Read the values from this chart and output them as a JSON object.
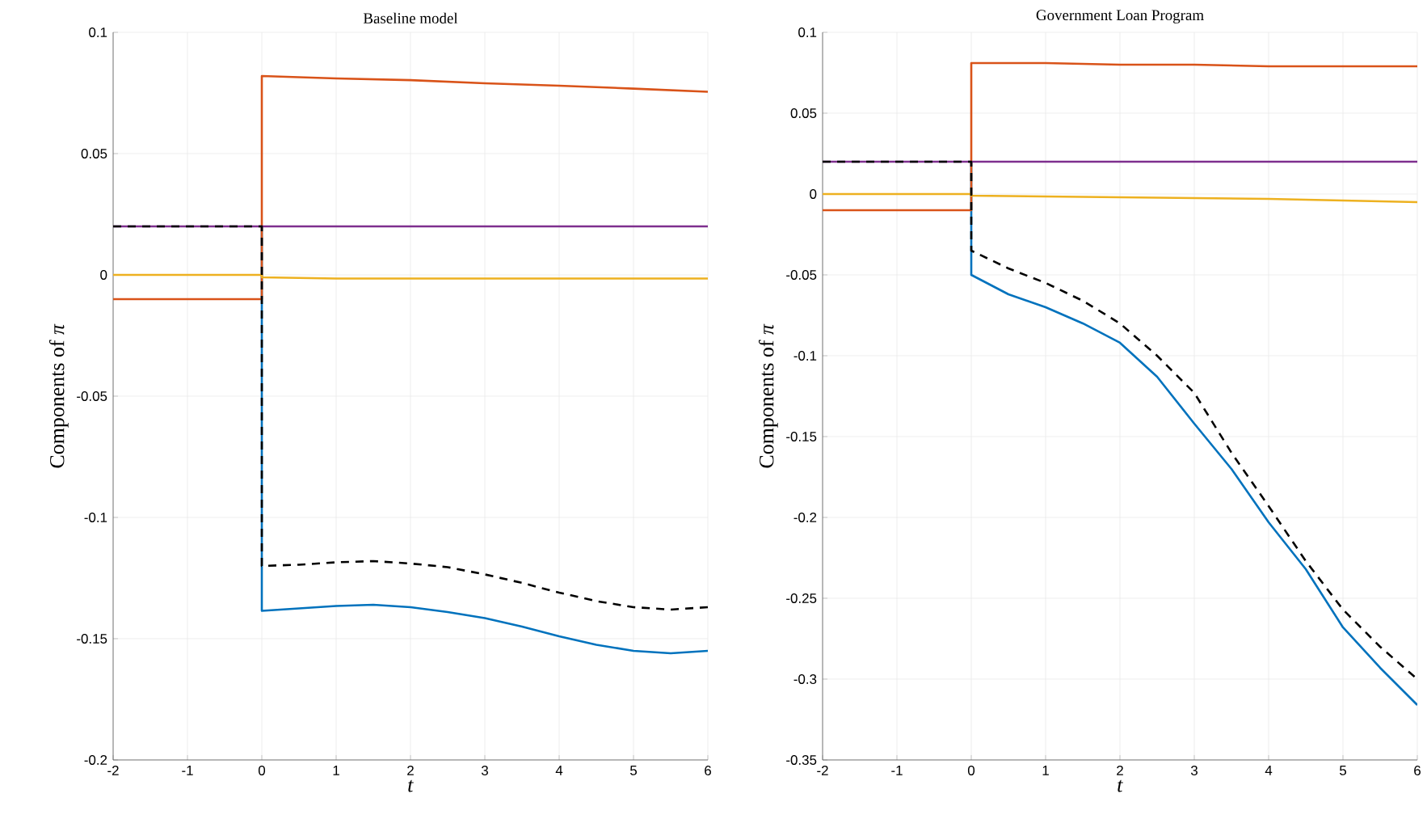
{
  "chart_data": [
    {
      "type": "line",
      "title": "Baseline model",
      "xlabel": "*t*",
      "ylabel": "Components of *π*",
      "xlim": [
        -2,
        6
      ],
      "ylim": [
        -0.2,
        0.1
      ],
      "xticks": [
        -2,
        -1,
        0,
        1,
        2,
        3,
        4,
        5,
        6
      ],
      "yticks": [
        -0.2,
        -0.15,
        -0.1,
        -0.05,
        0,
        0.05,
        0.1
      ],
      "grid": true,
      "series": [
        {
          "color": "#0072bd",
          "x": [
            0,
            0,
            0.5,
            1,
            1.5,
            2,
            2.5,
            3,
            3.5,
            4,
            4.5,
            5,
            5.5,
            6
          ],
          "values": [
            0.02,
            -0.1385,
            -0.1375,
            -0.1365,
            -0.136,
            -0.137,
            -0.139,
            -0.1415,
            -0.145,
            -0.149,
            -0.1525,
            -0.155,
            -0.156,
            -0.155
          ]
        },
        {
          "color": "#d95319",
          "x": [
            -2,
            0,
            0,
            1,
            2,
            3,
            4,
            5,
            6
          ],
          "values": [
            -0.01,
            -0.01,
            0.082,
            0.081,
            0.0803,
            0.079,
            0.078,
            0.0768,
            0.0755
          ]
        },
        {
          "color": "#edb120",
          "x": [
            -2,
            0,
            0,
            1,
            6
          ],
          "values": [
            0,
            0,
            -0.001,
            -0.0015,
            -0.0015
          ]
        },
        {
          "color": "#7e2f8e",
          "x": [
            -2,
            6
          ],
          "values": [
            0.02,
            0.02
          ]
        },
        {
          "color": "#000000",
          "line_style": "dashed",
          "x": [
            -2,
            0,
            0,
            0.5,
            1,
            1.5,
            2,
            2.5,
            3,
            3.5,
            4,
            4.5,
            5,
            5.5,
            6
          ],
          "values": [
            0.02,
            0.02,
            -0.12,
            -0.1195,
            -0.1185,
            -0.118,
            -0.119,
            -0.1205,
            -0.1235,
            -0.127,
            -0.131,
            -0.1345,
            -0.137,
            -0.138,
            -0.137
          ]
        }
      ]
    },
    {
      "type": "line",
      "title": "Government Loan Program",
      "xlabel": "*t*",
      "ylabel": "Components of *π*",
      "xlim": [
        -2,
        6
      ],
      "ylim": [
        -0.35,
        0.1
      ],
      "xticks": [
        -2,
        -1,
        0,
        1,
        2,
        3,
        4,
        5,
        6
      ],
      "yticks": [
        -0.35,
        -0.3,
        -0.25,
        -0.2,
        -0.15,
        -0.1,
        -0.05,
        0,
        0.05,
        0.1
      ],
      "grid": true,
      "series": [
        {
          "color": "#0072bd",
          "x": [
            0,
            0,
            0.5,
            1,
            1.5,
            2,
            2.5,
            3,
            3.5,
            4,
            4.5,
            5,
            5.5,
            6
          ],
          "values": [
            0.02,
            -0.05,
            -0.062,
            -0.07,
            -0.08,
            -0.092,
            -0.113,
            -0.142,
            -0.17,
            -0.203,
            -0.232,
            -0.268,
            -0.293,
            -0.316
          ]
        },
        {
          "color": "#d95319",
          "x": [
            -2,
            0,
            0,
            1,
            2,
            3,
            4,
            5,
            6
          ],
          "values": [
            -0.01,
            -0.01,
            0.081,
            0.081,
            0.08,
            0.08,
            0.079,
            0.079,
            0.079
          ]
        },
        {
          "color": "#edb120",
          "x": [
            -2,
            0,
            0,
            2,
            4,
            6
          ],
          "values": [
            0,
            0,
            -0.001,
            -0.002,
            -0.003,
            -0.005
          ]
        },
        {
          "color": "#7e2f8e",
          "x": [
            -2,
            6
          ],
          "values": [
            0.02,
            0.02
          ]
        },
        {
          "color": "#000000",
          "line_style": "dashed",
          "x": [
            -2,
            0,
            0,
            0.5,
            1,
            1.5,
            2,
            2.5,
            3,
            3.5,
            4,
            4.5,
            5,
            5.5,
            6
          ],
          "values": [
            0.02,
            0.02,
            -0.035,
            -0.046,
            -0.055,
            -0.066,
            -0.08,
            -0.1,
            -0.123,
            -0.16,
            -0.193,
            -0.227,
            -0.257,
            -0.28,
            -0.3
          ]
        }
      ]
    }
  ]
}
